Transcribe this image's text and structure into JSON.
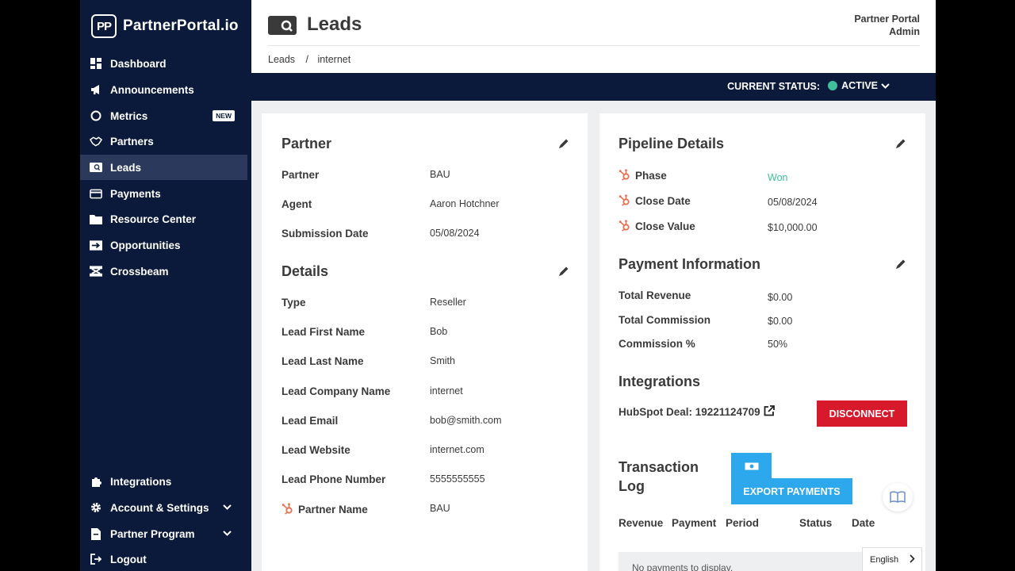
{
  "app": {
    "logo_mark": "PP",
    "logo_text": "PartnerPortal.io"
  },
  "sidebar": {
    "items": [
      {
        "label": "Dashboard",
        "icon": "dashboard-icon"
      },
      {
        "label": "Announcements",
        "icon": "megaphone-icon"
      },
      {
        "label": "Metrics",
        "icon": "metrics-icon",
        "badge": "NEW"
      },
      {
        "label": "Partners",
        "icon": "handshake-icon"
      },
      {
        "label": "Leads",
        "icon": "leads-icon",
        "active": true
      },
      {
        "label": "Payments",
        "icon": "credit-card-icon"
      },
      {
        "label": "Resource Center",
        "icon": "folder-icon"
      },
      {
        "label": "Opportunities",
        "icon": "opportunities-icon"
      },
      {
        "label": "Crossbeam",
        "icon": "crossbeam-icon"
      }
    ],
    "bottom_items": [
      {
        "label": "Integrations",
        "icon": "puzzle-icon"
      },
      {
        "label": "Account & Settings",
        "icon": "gear-icon"
      },
      {
        "label": "Partner Program",
        "icon": "document-icon"
      },
      {
        "label": "Logout",
        "icon": "logout-icon"
      }
    ]
  },
  "header": {
    "title": "Leads",
    "user_name": "Partner Portal",
    "user_role": "Admin",
    "breadcrumb": [
      "Leads",
      "/",
      "internet"
    ]
  },
  "status": {
    "label": "CURRENT STATUS:",
    "value": "ACTIVE",
    "color": "#3ebf9a"
  },
  "partner_section": {
    "title": "Partner",
    "rows": [
      {
        "label": "Partner",
        "value": "BAU"
      },
      {
        "label": "Agent",
        "value": "Aaron Hotchner"
      },
      {
        "label": "Submission Date",
        "value": "05/08/2024"
      }
    ]
  },
  "details_section": {
    "title": "Details",
    "rows": [
      {
        "label": "Type",
        "value": "Reseller"
      },
      {
        "label": "Lead First Name",
        "value": "Bob"
      },
      {
        "label": "Lead Last Name",
        "value": "Smith"
      },
      {
        "label": "Lead Company Name",
        "value": "internet"
      },
      {
        "label": "Lead Email",
        "value": "bob@smith.com"
      },
      {
        "label": "Lead Website",
        "value": "internet.com"
      },
      {
        "label": "Lead Phone Number",
        "value": "5555555555"
      },
      {
        "label": "Partner Name",
        "value": "BAU"
      }
    ]
  },
  "pipeline_section": {
    "title": "Pipeline Details",
    "rows": [
      {
        "label": "Phase",
        "value": "Won"
      },
      {
        "label": "Close Date",
        "value": "05/08/2024"
      },
      {
        "label": "Close Value",
        "value": "$10,000.00"
      }
    ]
  },
  "payment_section": {
    "title": "Payment Information",
    "rows": [
      {
        "label": "Total Revenue",
        "value": "$0.00"
      },
      {
        "label": "Total Commission",
        "value": "$0.00"
      },
      {
        "label": "Commission %",
        "value": "50%"
      }
    ]
  },
  "integrations_section": {
    "title": "Integrations",
    "deal_label": "HubSpot Deal: 19221124709",
    "disconnect_label": "DISCONNECT"
  },
  "transaction_log": {
    "title_line1": "Transaction",
    "title_line2": "Log",
    "export_label": "EXPORT PAYMENTS",
    "columns": [
      "Revenue",
      "Payment",
      "Period",
      "Status",
      "Date"
    ],
    "empty_text": "No payments to display."
  },
  "language": {
    "selected": "English"
  },
  "colors": {
    "sidebar_bg": "#0b1a3b",
    "accent_blue": "#2ea8ec",
    "danger": "#d7192c",
    "success": "#3ebf9a",
    "hubspot": "#e8704d"
  }
}
